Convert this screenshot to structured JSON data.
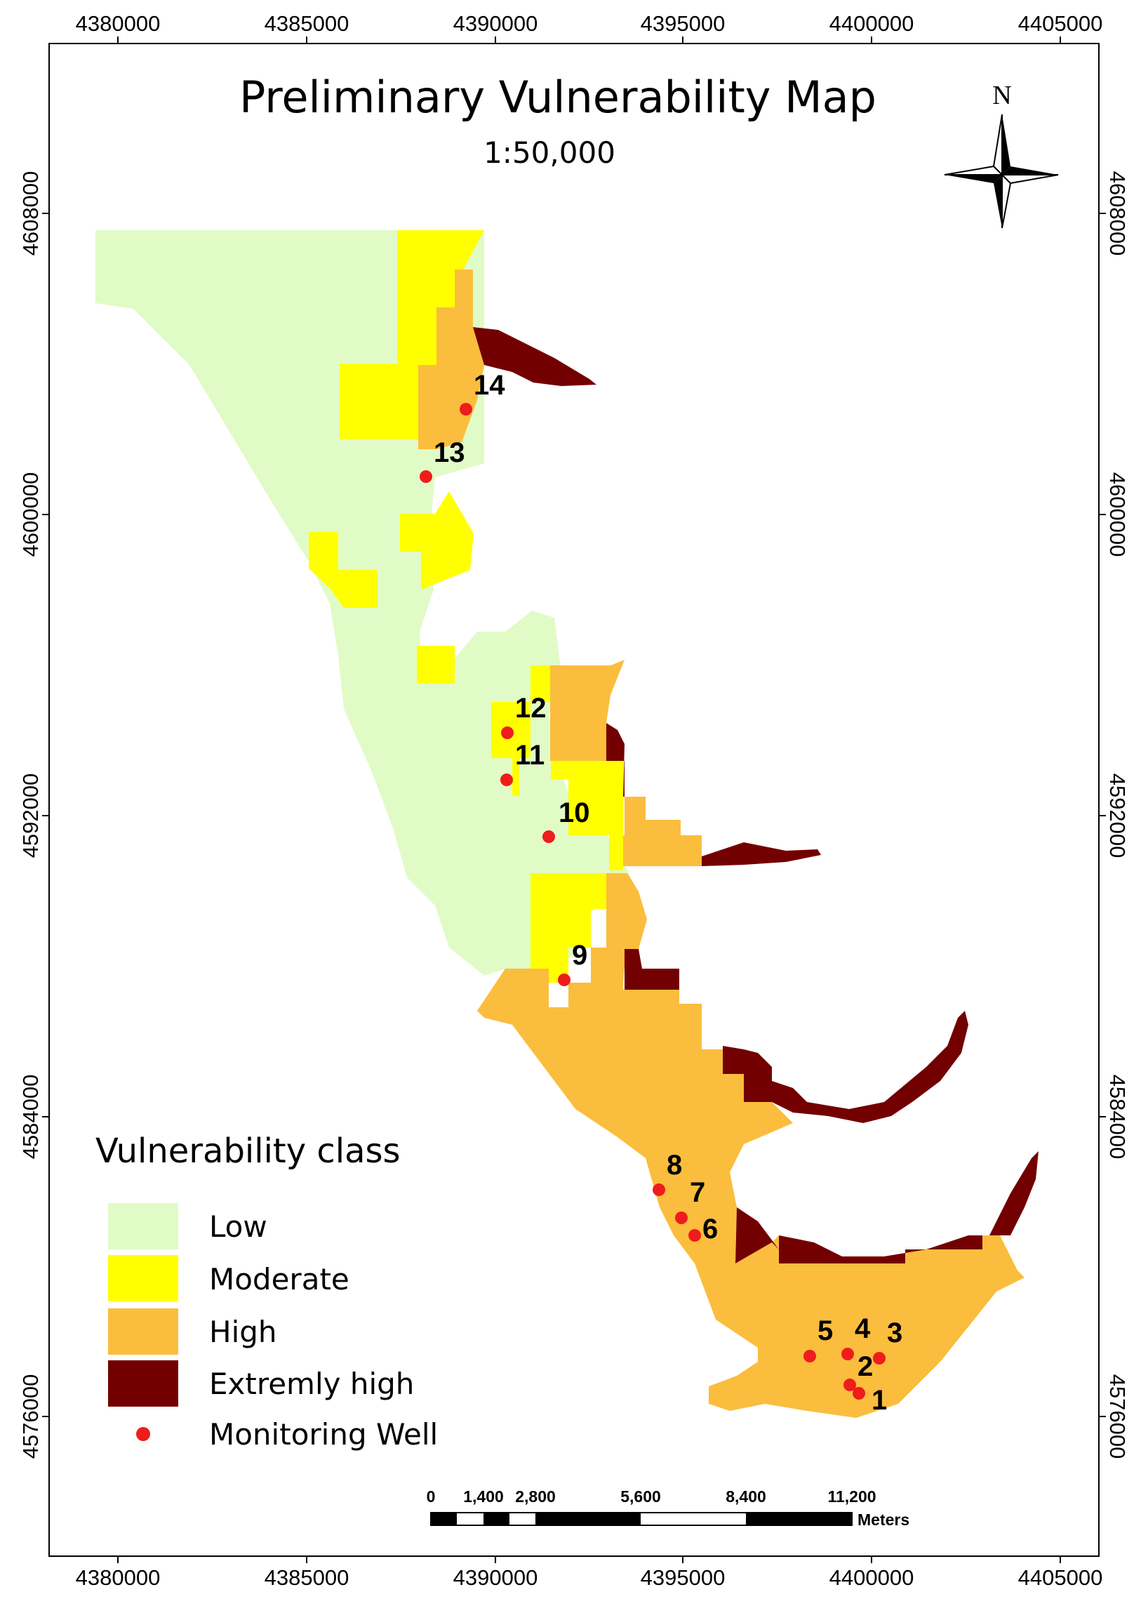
{
  "map": {
    "title": "Preliminary Vulnerability Map",
    "scale_text": "1:50,000",
    "north_label": "N"
  },
  "axes": {
    "x_ticks": [
      "4380000",
      "4385000",
      "4390000",
      "4395000",
      "4400000",
      "4405000"
    ],
    "y_ticks": [
      "4608000",
      "4600000",
      "4592000",
      "4584000",
      "4576000"
    ]
  },
  "legend": {
    "title": "Vulnerability class",
    "items": [
      {
        "label": "Low",
        "color": "#e1fbc7"
      },
      {
        "label": "Moderate",
        "color": "#ffff00"
      },
      {
        "label": "High",
        "color": "#fbbd3d"
      },
      {
        "label": "Extremly high",
        "color": "#730000"
      },
      {
        "label": "Monitoring Well",
        "color": "#ef1c1c"
      }
    ]
  },
  "wells": [
    "1",
    "2",
    "3",
    "4",
    "5",
    "6",
    "7",
    "8",
    "9",
    "10",
    "11",
    "12",
    "13",
    "14"
  ],
  "scalebar": {
    "labels": [
      "0",
      "1,400",
      "2,800",
      "5,600",
      "8,400",
      "11,200"
    ],
    "unit": "Meters"
  }
}
